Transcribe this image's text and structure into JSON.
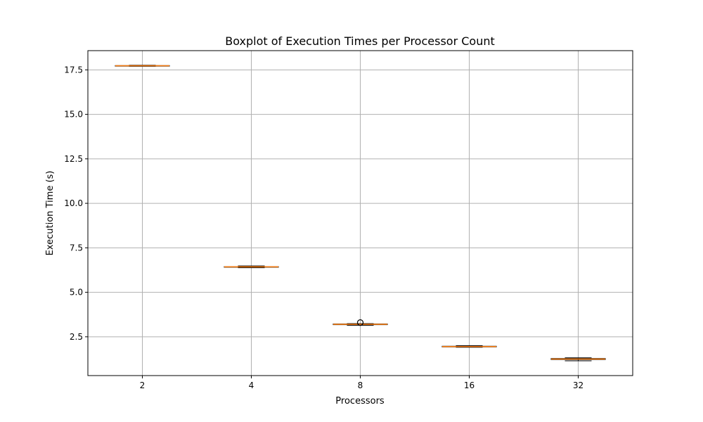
{
  "chart_data": {
    "type": "boxplot",
    "title": "Boxplot of Execution Times per Processor Count",
    "xlabel": "Processors",
    "ylabel": "Execution Time (s)",
    "categories": [
      "2",
      "4",
      "8",
      "16",
      "32"
    ],
    "boxes": [
      {
        "category": "2",
        "whisker_low": 17.7,
        "q1": 17.72,
        "median": 17.73,
        "q3": 17.74,
        "whisker_high": 17.76,
        "outliers": []
      },
      {
        "category": "4",
        "whisker_low": 6.38,
        "q1": 6.42,
        "median": 6.43,
        "q3": 6.44,
        "whisker_high": 6.48,
        "outliers": []
      },
      {
        "category": "8",
        "whisker_low": 3.14,
        "q1": 3.18,
        "median": 3.2,
        "q3": 3.22,
        "whisker_high": 3.24,
        "outliers": [
          3.3
        ]
      },
      {
        "category": "16",
        "whisker_low": 1.91,
        "q1": 1.93,
        "median": 1.95,
        "q3": 1.97,
        "whisker_high": 2.0,
        "outliers": []
      },
      {
        "category": "32",
        "whisker_low": 1.15,
        "q1": 1.22,
        "median": 1.25,
        "q3": 1.28,
        "whisker_high": 1.32,
        "outliers": []
      }
    ],
    "y_ticks": [
      2.5,
      5.0,
      7.5,
      10.0,
      12.5,
      15.0,
      17.5
    ],
    "y_tick_labels": [
      "2.5",
      "5.0",
      "7.5",
      "10.0",
      "12.5",
      "15.0",
      "17.5"
    ],
    "ylim": [
      0.32,
      18.58
    ],
    "grid": true,
    "legend": false,
    "colors": {
      "median": "#ff7f0e",
      "box_edge": "#000000",
      "grid": "#b0b0b0",
      "axes": "#000000"
    }
  }
}
